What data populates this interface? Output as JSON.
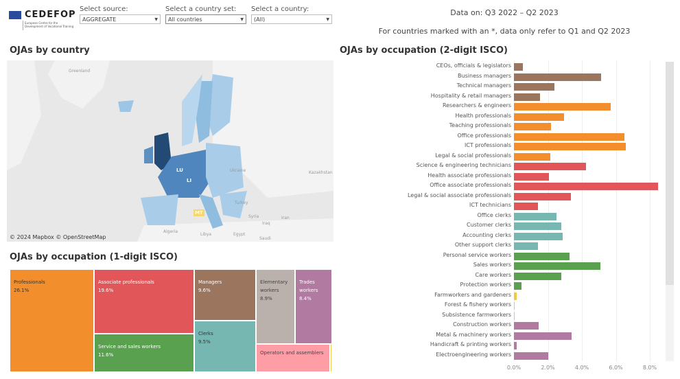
{
  "logo": {
    "name": "CEDEFOP",
    "subtitle": "European Centre for the Development of Vocational Training"
  },
  "filters": [
    {
      "label": "Select source:",
      "value": "AGGREGATE"
    },
    {
      "label": "Select a country set:",
      "value": "All countries"
    },
    {
      "label": "Select a country:",
      "value": "(All)"
    }
  ],
  "header": {
    "data_on": "Data on: Q3 2022 – Q2 2023",
    "note": "For countries marked with an *, data only refer to Q1 and Q2 2023"
  },
  "map": {
    "title": "OJAs by country",
    "labels": [
      "Greenland",
      "Ukraine",
      "Kazakhstan",
      "Turkey",
      "Iran",
      "Iraq",
      "Syria",
      "Algeria",
      "Libya",
      "Egypt",
      "Saudi",
      "LU",
      "LI",
      "MT"
    ],
    "attribution": "© 2024 Mapbox  © OpenStreetMap"
  },
  "treemap": {
    "title": "OJAs by occupation (1-digit ISCO)",
    "items": [
      {
        "label": "Professionals",
        "value": "26.1%",
        "color": "#f28e2b"
      },
      {
        "label": "Associate professionals",
        "value": "19.6%",
        "color": "#e15759"
      },
      {
        "label": "Service and sales workers",
        "value": "11.6%",
        "color": "#59a14f"
      },
      {
        "label": "Managers",
        "value": "9.6%",
        "color": "#9c755f"
      },
      {
        "label": "Clerks",
        "value": "9.5%",
        "color": "#76b7b2"
      },
      {
        "label": "Elementary workers",
        "value": "8.9%",
        "color": "#bab0ac"
      },
      {
        "label": "Trades workers",
        "value": "8.4%",
        "color": "#b07aa1"
      },
      {
        "label": "Operators and assemblers",
        "value": "",
        "color": "#ff9da7"
      }
    ]
  },
  "chart_data": {
    "type": "bar",
    "title": "OJAs by occupation (2-digit ISCO)",
    "xlim": [
      0,
      8.5
    ],
    "ticks": [
      "0.0%",
      "2.0%",
      "4.0%",
      "6.0%",
      "8.0%"
    ],
    "categories": [
      "CEOs, officials & legislators",
      "Business managers",
      "Technical managers",
      "Hospitality & retail managers",
      "Researchers & engineers",
      "Health professionals",
      "Teaching professionals",
      "Office professionals",
      "ICT professionals",
      "Legal & social professionals",
      "Science & engineering technicians",
      "Health associate professionals",
      "Office associate professionals",
      "Legal & social associate professionals",
      "ICT technicians",
      "Office clerks",
      "Customer clerks",
      "Accounting clerks",
      "Other support clerks",
      "Personal service workers",
      "Sales workers",
      "Care workers",
      "Protection workers",
      "Farmworkers and gardeners",
      "Forest & fishery workers",
      "Subsistence farmworkers",
      "Construction workers",
      "Metal & machinery workers",
      "Handicraft & printing workers",
      "Electroengineering workers"
    ],
    "values": [
      0.52,
      5.13,
      2.39,
      1.55,
      5.68,
      2.94,
      2.19,
      6.5,
      6.59,
      2.14,
      4.23,
      2.07,
      8.47,
      3.36,
      1.42,
      2.49,
      2.77,
      2.85,
      1.42,
      3.27,
      5.08,
      2.77,
      0.44,
      0.17,
      0.03,
      0.03,
      1.46,
      3.41,
      0.17,
      2.04
    ],
    "groups": [
      0,
      0,
      0,
      0,
      1,
      1,
      1,
      1,
      1,
      1,
      2,
      2,
      2,
      2,
      2,
      3,
      3,
      3,
      3,
      4,
      4,
      4,
      4,
      5,
      5,
      5,
      6,
      6,
      6,
      6
    ],
    "group_colors": [
      "#9c755f",
      "#f28e2b",
      "#e15759",
      "#76b7b2",
      "#59a14f",
      "#edc948",
      "#b07aa1"
    ]
  }
}
